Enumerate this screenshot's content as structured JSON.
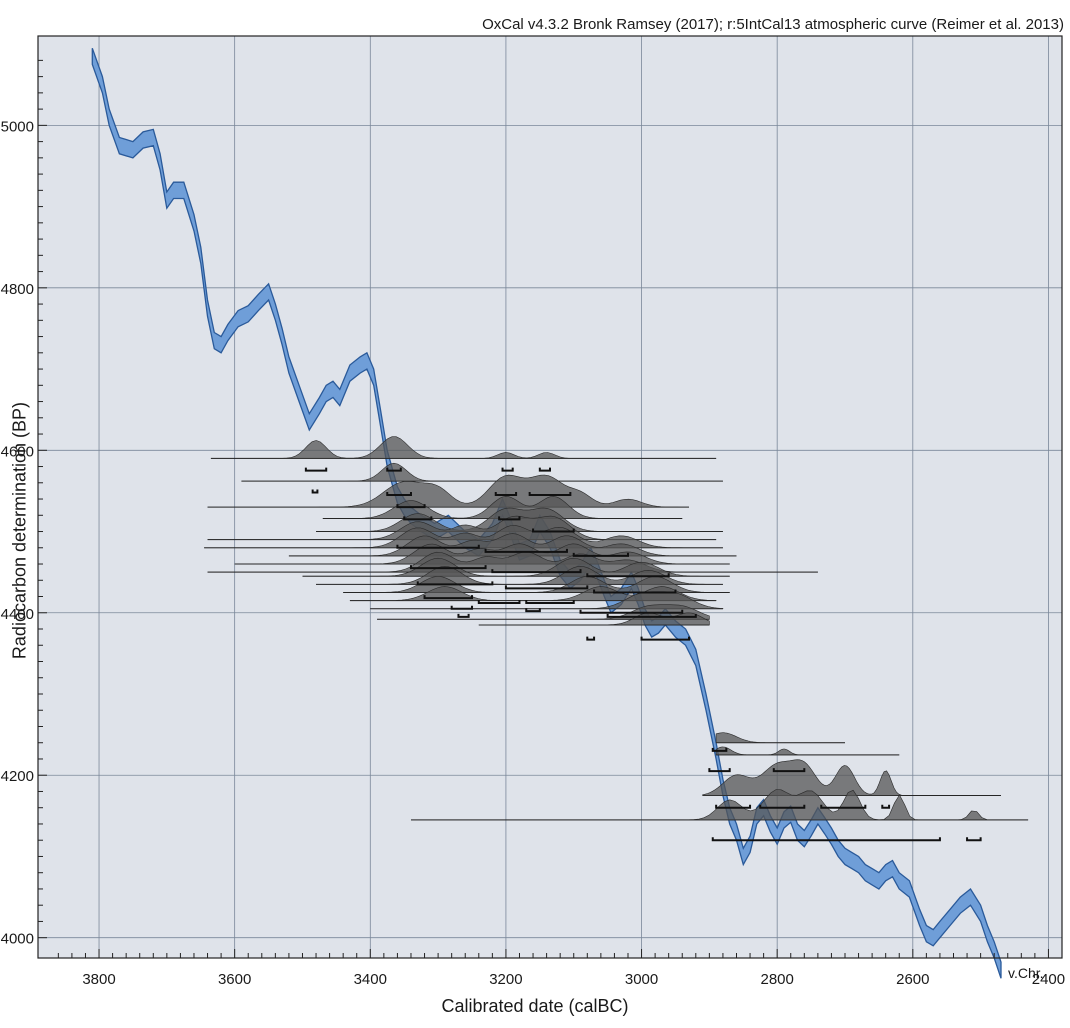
{
  "header": {
    "credit": "OxCal v4.3.2 Bronk Ramsey (2017); r:5IntCal13 atmospheric curve (Reimer et al. 2013)"
  },
  "chart_data": {
    "type": "line",
    "title": "",
    "xlabel": "Calibrated date (calBC)",
    "ylabel": "Radiocarbon determination (BP)",
    "x_unit_label": "v.Chr.",
    "xlim": [
      3890,
      2380
    ],
    "ylim": [
      3975,
      5110
    ],
    "x_ticks": [
      3800,
      3600,
      3400,
      3200,
      3000,
      2800,
      2600,
      2400
    ],
    "x_tick_labels": [
      "3800",
      "3600",
      "3400",
      "3200",
      "3000",
      "2800",
      "2600",
      "2400"
    ],
    "y_ticks": [
      4000,
      4200,
      4400,
      4600,
      4800,
      5000
    ],
    "y_tick_labels": [
      "4000",
      "4200",
      "4400",
      "4600",
      "4800",
      "5000"
    ],
    "grid": true,
    "colors": {
      "background": "#dfe3ea",
      "curve_fill": "#6f9ed8",
      "curve_edge": "#2a5a9a",
      "distribution": "#555555",
      "grid": "#7a8799"
    },
    "calibration_curve": {
      "x": [
        3810,
        3795,
        3785,
        3770,
        3750,
        3735,
        3720,
        3710,
        3700,
        3690,
        3675,
        3660,
        3650,
        3640,
        3630,
        3620,
        3610,
        3595,
        3580,
        3565,
        3550,
        3540,
        3530,
        3520,
        3505,
        3490,
        3475,
        3465,
        3455,
        3445,
        3430,
        3415,
        3405,
        3395,
        3385,
        3375,
        3360,
        3350,
        3340,
        3325,
        3305,
        3285,
        3260,
        3240,
        3220,
        3205,
        3195,
        3180,
        3165,
        3150,
        3135,
        3120,
        3105,
        3090,
        3075,
        3065,
        3055,
        3045,
        3030,
        3015,
        3005,
        2995,
        2985,
        2975,
        2965,
        2950,
        2935,
        2920,
        2905,
        2890,
        2880,
        2870,
        2860,
        2850,
        2840,
        2830,
        2820,
        2810,
        2800,
        2790,
        2780,
        2770,
        2760,
        2750,
        2740,
        2730,
        2720,
        2710,
        2700,
        2690,
        2680,
        2670,
        2660,
        2650,
        2640,
        2630,
        2620,
        2605,
        2590,
        2580,
        2570,
        2560,
        2545,
        2530,
        2515,
        2500,
        2490,
        2480,
        2470
      ],
      "y": [
        5085,
        5050,
        5010,
        4975,
        4970,
        4982,
        4985,
        4955,
        4908,
        4920,
        4920,
        4880,
        4840,
        4775,
        4735,
        4730,
        4745,
        4762,
        4768,
        4782,
        4795,
        4770,
        4740,
        4705,
        4670,
        4635,
        4655,
        4670,
        4675,
        4665,
        4695,
        4705,
        4710,
        4690,
        4640,
        4590,
        4545,
        4530,
        4520,
        4510,
        4500,
        4510,
        4490,
        4480,
        4500,
        4530,
        4510,
        4475,
        4480,
        4510,
        4490,
        4455,
        4440,
        4450,
        4470,
        4452,
        4430,
        4410,
        4420,
        4440,
        4420,
        4395,
        4380,
        4385,
        4395,
        4380,
        4370,
        4345,
        4290,
        4230,
        4185,
        4150,
        4130,
        4100,
        4115,
        4150,
        4160,
        4140,
        4125,
        4145,
        4152,
        4130,
        4122,
        4135,
        4150,
        4138,
        4125,
        4110,
        4100,
        4095,
        4090,
        4080,
        4075,
        4070,
        4080,
        4085,
        4070,
        4060,
        4025,
        4005,
        4000,
        4010,
        4025,
        4040,
        4050,
        4030,
        4005,
        3985,
        3960
      ],
      "upper": [
        5095,
        5060,
        5020,
        4985,
        4980,
        4992,
        4995,
        4965,
        4918,
        4930,
        4930,
        4890,
        4850,
        4785,
        4745,
        4740,
        4755,
        4772,
        4778,
        4792,
        4805,
        4780,
        4750,
        4715,
        4680,
        4645,
        4665,
        4680,
        4685,
        4675,
        4705,
        4715,
        4720,
        4700,
        4650,
        4600,
        4555,
        4540,
        4530,
        4520,
        4510,
        4520,
        4500,
        4490,
        4510,
        4540,
        4520,
        4485,
        4490,
        4520,
        4500,
        4465,
        4450,
        4460,
        4480,
        4462,
        4440,
        4420,
        4430,
        4450,
        4430,
        4405,
        4390,
        4395,
        4405,
        4390,
        4380,
        4355,
        4300,
        4240,
        4195,
        4160,
        4140,
        4110,
        4125,
        4160,
        4170,
        4150,
        4135,
        4155,
        4162,
        4140,
        4132,
        4145,
        4160,
        4148,
        4135,
        4120,
        4110,
        4105,
        4100,
        4090,
        4085,
        4080,
        4090,
        4095,
        4080,
        4070,
        4035,
        4015,
        4010,
        4020,
        4035,
        4050,
        4060,
        4040,
        4015,
        3995,
        3970
      ],
      "lower": [
        5075,
        5040,
        5000,
        4965,
        4960,
        4972,
        4975,
        4945,
        4898,
        4910,
        4910,
        4870,
        4830,
        4765,
        4725,
        4720,
        4735,
        4752,
        4758,
        4772,
        4785,
        4760,
        4730,
        4695,
        4660,
        4625,
        4645,
        4660,
        4665,
        4655,
        4685,
        4695,
        4700,
        4680,
        4630,
        4580,
        4535,
        4520,
        4510,
        4500,
        4490,
        4500,
        4480,
        4470,
        4490,
        4520,
        4500,
        4465,
        4470,
        4500,
        4480,
        4445,
        4430,
        4440,
        4460,
        4442,
        4420,
        4400,
        4410,
        4430,
        4410,
        4385,
        4370,
        4375,
        4385,
        4370,
        4360,
        4335,
        4280,
        4220,
        4175,
        4140,
        4120,
        4090,
        4105,
        4140,
        4150,
        4130,
        4115,
        4135,
        4142,
        4120,
        4112,
        4125,
        4140,
        4128,
        4115,
        4100,
        4090,
        4085,
        4080,
        4070,
        4065,
        4060,
        4070,
        4075,
        4060,
        4050,
        4015,
        3995,
        3990,
        4000,
        4015,
        4030,
        4040,
        4020,
        3995,
        3975,
        3950
      ]
    },
    "determinations": [
      {
        "bp": 4590,
        "from": 3635,
        "to": 2890,
        "peaks": [
          [
            3480,
            15,
            18
          ],
          [
            3365,
            20,
            22
          ],
          [
            3200,
            12,
            6
          ],
          [
            3140,
            12,
            6
          ]
        ]
      },
      {
        "bp": 4562,
        "from": 3590,
        "to": 2880,
        "peaks": [
          [
            3365,
            18,
            18
          ]
        ]
      },
      {
        "bp": 4530,
        "from": 3640,
        "to": 2930,
        "peaks": [
          [
            3350,
            30,
            25
          ],
          [
            3300,
            20,
            15
          ],
          [
            3200,
            25,
            30
          ],
          [
            3140,
            25,
            30
          ],
          [
            3090,
            18,
            12
          ],
          [
            3020,
            20,
            8
          ]
        ]
      },
      {
        "bp": 4516,
        "from": 3470,
        "to": 2940,
        "peaks": [
          [
            3340,
            25,
            18
          ],
          [
            3200,
            22,
            22
          ],
          [
            3130,
            22,
            22
          ]
        ]
      },
      {
        "bp": 4500,
        "from": 3480,
        "to": 2880,
        "peaks": [
          [
            3330,
            25,
            18
          ],
          [
            3200,
            25,
            22
          ],
          [
            3140,
            25,
            22
          ]
        ]
      },
      {
        "bp": 4490,
        "from": 3640,
        "to": 2890,
        "peaks": [
          [
            3330,
            25,
            18
          ],
          [
            3260,
            20,
            14
          ],
          [
            3190,
            25,
            22
          ],
          [
            3130,
            25,
            22
          ]
        ]
      },
      {
        "bp": 4480,
        "from": 3645,
        "to": 2880,
        "peaks": [
          [
            3330,
            25,
            20
          ],
          [
            3260,
            20,
            14
          ],
          [
            3190,
            25,
            22
          ],
          [
            3120,
            25,
            20
          ],
          [
            3030,
            25,
            12
          ]
        ]
      },
      {
        "bp": 4470,
        "from": 3520,
        "to": 2860,
        "peaks": [
          [
            3320,
            25,
            20
          ],
          [
            3250,
            20,
            14
          ],
          [
            3190,
            25,
            22
          ],
          [
            3110,
            25,
            20
          ],
          [
            3030,
            25,
            12
          ]
        ]
      },
      {
        "bp": 4460,
        "from": 3600,
        "to": 2870,
        "peaks": [
          [
            3310,
            25,
            20
          ],
          [
            3240,
            20,
            14
          ],
          [
            3180,
            25,
            20
          ],
          [
            3100,
            25,
            20
          ],
          [
            3020,
            25,
            12
          ]
        ]
      },
      {
        "bp": 4450,
        "from": 3640,
        "to": 2740,
        "peaks": [
          [
            3300,
            25,
            20
          ],
          [
            3230,
            20,
            14
          ],
          [
            3170,
            25,
            20
          ],
          [
            3090,
            25,
            18
          ],
          [
            3020,
            25,
            12
          ]
        ]
      },
      {
        "bp": 4445,
        "from": 3500,
        "to": 2870,
        "peaks": [
          [
            3300,
            25,
            18
          ],
          [
            3100,
            25,
            18
          ],
          [
            3000,
            25,
            14
          ]
        ]
      },
      {
        "bp": 4435,
        "from": 3480,
        "to": 2880,
        "peaks": [
          [
            3290,
            25,
            18
          ],
          [
            3090,
            25,
            18
          ],
          [
            2990,
            25,
            14
          ]
        ]
      },
      {
        "bp": 4425,
        "from": 3440,
        "to": 2870,
        "peaks": [
          [
            3300,
            25,
            16
          ],
          [
            3080,
            25,
            16
          ],
          [
            2980,
            25,
            16
          ]
        ]
      },
      {
        "bp": 4415,
        "from": 3430,
        "to": 2890,
        "peaks": [
          [
            3290,
            25,
            14
          ],
          [
            3060,
            25,
            14
          ],
          [
            2970,
            25,
            14
          ]
        ]
      },
      {
        "bp": 4405,
        "from": 3400,
        "to": 2880,
        "peaks": [
          [
            3000,
            25,
            14
          ],
          [
            2950,
            25,
            14
          ]
        ]
      },
      {
        "bp": 4392,
        "from": 3390,
        "to": 2900,
        "peaks": [
          [
            2990,
            25,
            12
          ],
          [
            2940,
            25,
            12
          ]
        ]
      },
      {
        "bp": 4385,
        "from": 3240,
        "to": 2900,
        "peaks": [
          [
            2990,
            20,
            12
          ],
          [
            2930,
            20,
            12
          ]
        ]
      },
      {
        "bp": 4240,
        "from": 2890,
        "to": 2700,
        "peaks": [
          [
            2880,
            20,
            10
          ]
        ]
      },
      {
        "bp": 4225,
        "from": 2890,
        "to": 2620,
        "peaks": [
          [
            2880,
            12,
            8
          ],
          [
            2790,
            8,
            6
          ]
        ]
      },
      {
        "bp": 4175,
        "from": 2910,
        "to": 2470,
        "peaks": [
          [
            2860,
            20,
            20
          ],
          [
            2800,
            22,
            30
          ],
          [
            2760,
            18,
            28
          ],
          [
            2700,
            14,
            30
          ],
          [
            2640,
            8,
            25
          ]
        ]
      },
      {
        "bp": 4145,
        "from": 3340,
        "to": 2430,
        "peaks": [
          [
            2870,
            18,
            20
          ],
          [
            2800,
            20,
            30
          ],
          [
            2750,
            18,
            28
          ],
          [
            2690,
            12,
            30
          ],
          [
            2620,
            8,
            25
          ],
          [
            2510,
            7,
            10
          ]
        ]
      }
    ],
    "ranges": [
      {
        "bp": 4575,
        "from": 3495,
        "to": 3465
      },
      {
        "bp": 4575,
        "from": 3375,
        "to": 3355
      },
      {
        "bp": 4575,
        "from": 3205,
        "to": 3190
      },
      {
        "bp": 4575,
        "from": 3150,
        "to": 3135
      },
      {
        "bp": 4548,
        "from": 3485,
        "to": 3478
      },
      {
        "bp": 4545,
        "from": 3375,
        "to": 3340
      },
      {
        "bp": 4545,
        "from": 3215,
        "to": 3185
      },
      {
        "bp": 4545,
        "from": 3165,
        "to": 3105
      },
      {
        "bp": 4530,
        "from": 3360,
        "to": 3320
      },
      {
        "bp": 4515,
        "from": 3350,
        "to": 3310
      },
      {
        "bp": 4515,
        "from": 3210,
        "to": 3180
      },
      {
        "bp": 4500,
        "from": 3160,
        "to": 3100
      },
      {
        "bp": 4480,
        "from": 3360,
        "to": 3240
      },
      {
        "bp": 4475,
        "from": 3230,
        "to": 3110
      },
      {
        "bp": 4470,
        "from": 3100,
        "to": 3020
      },
      {
        "bp": 4455,
        "from": 3340,
        "to": 3230
      },
      {
        "bp": 4450,
        "from": 3220,
        "to": 3090
      },
      {
        "bp": 4445,
        "from": 3080,
        "to": 2960
      },
      {
        "bp": 4435,
        "from": 3330,
        "to": 3220
      },
      {
        "bp": 4430,
        "from": 3200,
        "to": 3080
      },
      {
        "bp": 4425,
        "from": 3070,
        "to": 2950
      },
      {
        "bp": 4418,
        "from": 3320,
        "to": 3250
      },
      {
        "bp": 4412,
        "from": 3240,
        "to": 3180
      },
      {
        "bp": 4412,
        "from": 3170,
        "to": 3100
      },
      {
        "bp": 4405,
        "from": 3280,
        "to": 3250
      },
      {
        "bp": 4402,
        "from": 3170,
        "to": 3150
      },
      {
        "bp": 4400,
        "from": 3090,
        "to": 2940
      },
      {
        "bp": 4395,
        "from": 3270,
        "to": 3255
      },
      {
        "bp": 4395,
        "from": 3050,
        "to": 2920
      },
      {
        "bp": 4367,
        "from": 3080,
        "to": 3070
      },
      {
        "bp": 4367,
        "from": 3000,
        "to": 2930
      },
      {
        "bp": 4230,
        "from": 2895,
        "to": 2875
      },
      {
        "bp": 4205,
        "from": 2900,
        "to": 2870
      },
      {
        "bp": 4205,
        "from": 2805,
        "to": 2760
      },
      {
        "bp": 4160,
        "from": 2890,
        "to": 2840
      },
      {
        "bp": 4160,
        "from": 2825,
        "to": 2760
      },
      {
        "bp": 4160,
        "from": 2735,
        "to": 2670
      },
      {
        "bp": 4160,
        "from": 2645,
        "to": 2635
      },
      {
        "bp": 4120,
        "from": 2895,
        "to": 2560
      },
      {
        "bp": 4120,
        "from": 2520,
        "to": 2500
      }
    ]
  }
}
